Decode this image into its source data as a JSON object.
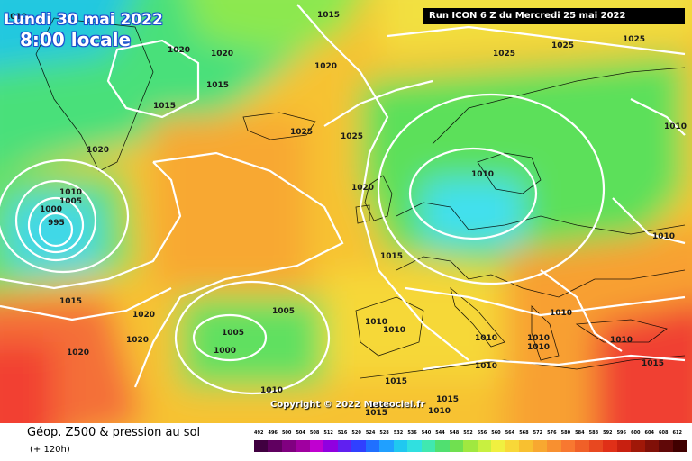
{
  "map": {
    "date_line": "Lundi 30 mai 2022",
    "time_line": "8:00 locale",
    "run_label": "Run ICON 6 Z du Mercredi 25 mai 2022",
    "copyright": "Copyright © 2022 Meteociel.fr",
    "pressure_labels": [
      "1015",
      "1020",
      "1020",
      "1015",
      "1015",
      "1020",
      "1020",
      "1010",
      "1025",
      "1025",
      "1025",
      "1025",
      "1020",
      "1010",
      "1005",
      "1000",
      "995",
      "1010",
      "1015",
      "1015",
      "1020",
      "1020",
      "1020",
      "1025",
      "1005",
      "1005",
      "1000",
      "1010",
      "1015",
      "1010",
      "1010",
      "1010",
      "1010",
      "1010",
      "1010",
      "1010",
      "1010",
      "1015",
      "1015",
      "1010",
      "1010",
      "1010",
      "1010",
      "1015"
    ]
  },
  "colors": {
    "isobar": "#ffffff",
    "low_center": "#40e0f0",
    "green": "#55e05a",
    "yellow": "#f5e82d",
    "orange": "#f7a52a",
    "red": "#f24030"
  },
  "footer": {
    "title": "Géop. Z500 & pression au sol",
    "subtitle": "(+ 120h)"
  },
  "legend": {
    "ticks": [
      "492",
      "496",
      "500",
      "504",
      "508",
      "512",
      "516",
      "520",
      "524",
      "528",
      "532",
      "536",
      "540",
      "544",
      "548",
      "552",
      "556",
      "560",
      "564",
      "568",
      "572",
      "576",
      "580",
      "584",
      "588",
      "592",
      "596",
      "600",
      "604",
      "608",
      "612"
    ],
    "colors": [
      "#400040",
      "#600060",
      "#800080",
      "#a000a0",
      "#c000d0",
      "#9000e0",
      "#6020f0",
      "#3040ff",
      "#2070ff",
      "#20a0ff",
      "#20c8f0",
      "#30e0e0",
      "#40e8b0",
      "#50e070",
      "#70e050",
      "#a0e840",
      "#c8f040",
      "#f0f040",
      "#f8d838",
      "#f8c030",
      "#f8a830",
      "#f89030",
      "#f87830",
      "#f06028",
      "#e84820",
      "#e03018",
      "#c82010",
      "#a01808",
      "#801008",
      "#600808",
      "#400000"
    ]
  }
}
